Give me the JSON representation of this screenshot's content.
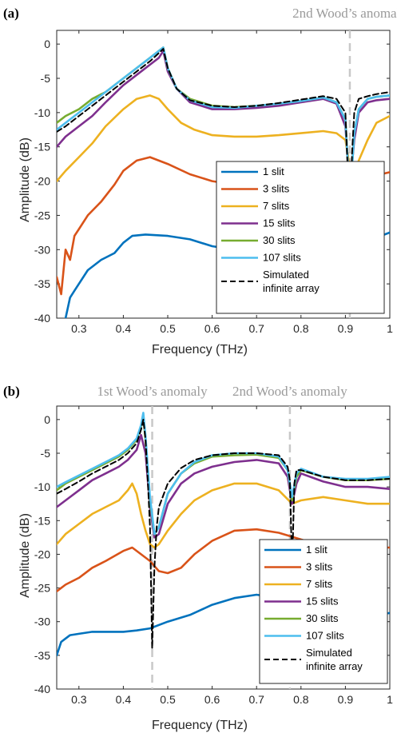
{
  "chart_data": [
    {
      "type": "line",
      "panel_label": "(a)",
      "annotations": [
        {
          "text": "2nd Wood’s anomaly",
          "x": 0.91
        }
      ],
      "xlabel": "Frequency (THz)",
      "ylabel": "Amplitude (dB)",
      "xlim": [
        0.25,
        1.0
      ],
      "ylim": [
        -40,
        2
      ],
      "xticks": [
        0.3,
        0.4,
        0.5,
        0.6,
        0.7,
        0.8,
        0.9,
        1
      ],
      "xtick_labels": [
        "0.3",
        "0.4",
        "0.5",
        "0.6",
        "0.7",
        "0.8",
        "0.9",
        "1"
      ],
      "yticks": [
        0,
        -5,
        -10,
        -15,
        -20,
        -25,
        -30,
        -35,
        -40
      ],
      "ytick_labels": [
        "0",
        "-5",
        "-10",
        "-15",
        "-20",
        "-25",
        "-30",
        "-35",
        "-40"
      ],
      "legend_position": "center-right",
      "series": [
        {
          "name": "1 slit",
          "color": "#0072BD",
          "dash": false,
          "x": [
            0.25,
            0.26,
            0.27,
            0.28,
            0.29,
            0.3,
            0.32,
            0.35,
            0.38,
            0.4,
            0.42,
            0.45,
            0.5,
            0.55,
            0.6,
            0.65,
            0.7,
            0.75,
            0.8,
            0.85,
            0.9,
            0.95,
            0.98,
            1.0
          ],
          "y": [
            -44,
            -42,
            -40,
            -37,
            -36,
            -35,
            -33,
            -31.5,
            -30.5,
            -29,
            -28,
            -27.8,
            -28,
            -28.5,
            -29.5,
            -30,
            -30.5,
            -30.3,
            -30,
            -29.5,
            -29,
            -28.5,
            -28,
            -27.5
          ]
        },
        {
          "name": "3 slits",
          "color": "#D95319",
          "dash": false,
          "x": [
            0.25,
            0.26,
            0.27,
            0.28,
            0.29,
            0.3,
            0.32,
            0.35,
            0.38,
            0.4,
            0.43,
            0.46,
            0.5,
            0.55,
            0.6,
            0.65,
            0.7,
            0.75,
            0.8,
            0.85,
            0.88,
            0.9,
            0.92,
            0.95,
            0.98,
            1.0
          ],
          "y": [
            -34,
            -36.5,
            -30,
            -31.5,
            -28,
            -27,
            -25,
            -23,
            -20.5,
            -18.5,
            -17,
            -16.5,
            -17.5,
            -19,
            -20,
            -20.5,
            -21,
            -21.5,
            -22,
            -22.5,
            -23,
            -23,
            -22.5,
            -20.5,
            -19,
            -18.7
          ]
        },
        {
          "name": "7 slits",
          "color": "#EDB120",
          "dash": false,
          "x": [
            0.25,
            0.27,
            0.3,
            0.33,
            0.36,
            0.4,
            0.43,
            0.46,
            0.48,
            0.5,
            0.53,
            0.56,
            0.6,
            0.65,
            0.7,
            0.75,
            0.8,
            0.85,
            0.88,
            0.9,
            0.91,
            0.92,
            0.93,
            0.95,
            0.97,
            1.0
          ],
          "y": [
            -20,
            -18.5,
            -16.5,
            -14.5,
            -12,
            -9.5,
            -8,
            -7.5,
            -8,
            -9.5,
            -11.5,
            -12.5,
            -13.3,
            -13.5,
            -13.5,
            -13.3,
            -13,
            -12.7,
            -13,
            -14,
            -18,
            -19,
            -17,
            -14,
            -11.5,
            -10.5
          ]
        },
        {
          "name": "15 slits",
          "color": "#7E2F8E",
          "dash": false,
          "x": [
            0.25,
            0.27,
            0.3,
            0.33,
            0.36,
            0.4,
            0.43,
            0.46,
            0.48,
            0.49,
            0.5,
            0.52,
            0.55,
            0.6,
            0.65,
            0.7,
            0.75,
            0.8,
            0.85,
            0.88,
            0.9,
            0.91,
            0.92,
            0.93,
            0.95,
            0.97,
            1.0
          ],
          "y": [
            -15,
            -13.5,
            -12,
            -10.5,
            -8.5,
            -6,
            -4.5,
            -3,
            -2,
            -1,
            -4,
            -6.5,
            -8.5,
            -9.5,
            -9.5,
            -9.3,
            -9,
            -8.5,
            -8,
            -8.7,
            -12,
            -21,
            -14,
            -10,
            -8.5,
            -8.2,
            -8
          ]
        },
        {
          "name": "30 slits",
          "color": "#77AC30",
          "dash": false,
          "x": [
            0.25,
            0.27,
            0.3,
            0.33,
            0.36,
            0.4,
            0.43,
            0.46,
            0.48,
            0.49,
            0.5,
            0.52,
            0.55,
            0.6,
            0.65,
            0.7,
            0.75,
            0.8,
            0.85,
            0.88,
            0.9,
            0.91,
            0.92,
            0.93,
            0.95,
            0.97,
            1.0
          ],
          "y": [
            -11.5,
            -10.5,
            -9.5,
            -8,
            -7,
            -5,
            -3.5,
            -2,
            -1,
            -0.5,
            -3.5,
            -6.5,
            -8,
            -9,
            -9.2,
            -9,
            -8.7,
            -8.3,
            -7.8,
            -8.5,
            -11,
            -22.5,
            -13,
            -9.5,
            -8,
            -7.7,
            -7.5
          ]
        },
        {
          "name": "107 slits",
          "color": "#4DBEEE",
          "dash": false,
          "x": [
            0.25,
            0.27,
            0.3,
            0.33,
            0.36,
            0.4,
            0.43,
            0.46,
            0.48,
            0.49,
            0.5,
            0.52,
            0.55,
            0.6,
            0.65,
            0.7,
            0.75,
            0.8,
            0.85,
            0.88,
            0.9,
            0.91,
            0.92,
            0.93,
            0.95,
            0.97,
            1.0
          ],
          "y": [
            -12.5,
            -11.5,
            -10,
            -8.5,
            -7,
            -5,
            -3.5,
            -2,
            -1,
            -0.5,
            -3.5,
            -6.5,
            -8.2,
            -9.2,
            -9.3,
            -9,
            -8.7,
            -8.3,
            -7.8,
            -8.5,
            -11,
            -23,
            -13,
            -9.5,
            -8,
            -7.7,
            -7.5
          ]
        },
        {
          "name": "Simulated infinite array",
          "legend_lines": [
            "Simulated",
            "infinite array"
          ],
          "color": "#000000",
          "dash": true,
          "x": [
            0.25,
            0.27,
            0.3,
            0.33,
            0.36,
            0.4,
            0.43,
            0.46,
            0.48,
            0.49,
            0.5,
            0.52,
            0.55,
            0.6,
            0.65,
            0.7,
            0.75,
            0.8,
            0.85,
            0.88,
            0.9,
            0.905,
            0.91,
            0.915,
            0.92,
            0.93,
            0.95,
            0.97,
            1.0
          ],
          "y": [
            -12.8,
            -12,
            -10.5,
            -9,
            -7.5,
            -5.5,
            -4,
            -2.5,
            -1.3,
            -0.7,
            -3.5,
            -6.5,
            -8.2,
            -9,
            -9.2,
            -9,
            -8.6,
            -8.1,
            -7.6,
            -8,
            -10,
            -18,
            -31,
            -16,
            -10,
            -8,
            -7.6,
            -7.3,
            -7
          ]
        }
      ]
    },
    {
      "type": "line",
      "panel_label": "(b)",
      "annotations": [
        {
          "text": "1st Wood’s anomaly",
          "x": 0.465
        },
        {
          "text": "2nd Wood’s anomaly",
          "x": 0.775
        }
      ],
      "xlabel": "Frequency (THz)",
      "ylabel": "Amplitude (dB)",
      "xlim": [
        0.25,
        1.0
      ],
      "ylim": [
        -40,
        2
      ],
      "xticks": [
        0.3,
        0.4,
        0.5,
        0.6,
        0.7,
        0.8,
        0.9,
        1
      ],
      "xtick_labels": [
        "0.3",
        "0.4",
        "0.5",
        "0.6",
        "0.7",
        "0.8",
        "0.9",
        "1"
      ],
      "yticks": [
        0,
        -5,
        -10,
        -15,
        -20,
        -25,
        -30,
        -35,
        -40
      ],
      "ytick_labels": [
        "0",
        "-5",
        "-10",
        "-15",
        "-20",
        "-25",
        "-30",
        "-35",
        "-40"
      ],
      "legend_position": "bottom-right",
      "series": [
        {
          "name": "1 slit",
          "color": "#0072BD",
          "dash": false,
          "x": [
            0.25,
            0.26,
            0.27,
            0.28,
            0.3,
            0.33,
            0.36,
            0.4,
            0.43,
            0.46,
            0.5,
            0.55,
            0.6,
            0.65,
            0.7,
            0.75,
            0.8,
            0.85,
            0.9,
            0.95,
            1.0
          ],
          "y": [
            -35,
            -33,
            -32.5,
            -32,
            -31.8,
            -31.5,
            -31.5,
            -31.5,
            -31.3,
            -31,
            -30,
            -29,
            -27.5,
            -26.5,
            -26,
            -26.5,
            -27.5,
            -28.5,
            -29.3,
            -29.3,
            -28.7
          ]
        },
        {
          "name": "3 slits",
          "color": "#D95319",
          "dash": false,
          "x": [
            0.25,
            0.27,
            0.3,
            0.33,
            0.36,
            0.4,
            0.42,
            0.44,
            0.46,
            0.48,
            0.5,
            0.53,
            0.56,
            0.6,
            0.65,
            0.7,
            0.75,
            0.8,
            0.85,
            0.9,
            0.95,
            1.0
          ],
          "y": [
            -25.5,
            -24.5,
            -23.5,
            -22,
            -21,
            -19.5,
            -19,
            -20,
            -21,
            -22.5,
            -22.8,
            -22,
            -20,
            -18,
            -16.5,
            -16.3,
            -16.8,
            -17.8,
            -18.7,
            -19,
            -19,
            -19
          ]
        },
        {
          "name": "7 slits",
          "color": "#EDB120",
          "dash": false,
          "x": [
            0.25,
            0.27,
            0.3,
            0.33,
            0.36,
            0.39,
            0.41,
            0.42,
            0.43,
            0.44,
            0.45,
            0.46,
            0.47,
            0.48,
            0.5,
            0.53,
            0.56,
            0.6,
            0.65,
            0.7,
            0.75,
            0.78,
            0.8,
            0.85,
            0.9,
            0.95,
            1.0
          ],
          "y": [
            -18.5,
            -17,
            -15.5,
            -14,
            -13,
            -12,
            -10.5,
            -9.5,
            -11,
            -14,
            -16.5,
            -18.5,
            -19,
            -18.5,
            -16.5,
            -14,
            -12,
            -10.5,
            -9.5,
            -9.5,
            -10.5,
            -12.5,
            -12,
            -11.5,
            -12,
            -12.5,
            -12.5
          ]
        },
        {
          "name": "15 slits",
          "color": "#7E2F8E",
          "dash": false,
          "x": [
            0.25,
            0.27,
            0.3,
            0.33,
            0.36,
            0.39,
            0.41,
            0.43,
            0.44,
            0.45,
            0.46,
            0.47,
            0.48,
            0.5,
            0.53,
            0.56,
            0.6,
            0.65,
            0.7,
            0.75,
            0.77,
            0.78,
            0.79,
            0.8,
            0.85,
            0.9,
            0.95,
            1.0
          ],
          "y": [
            -13,
            -12,
            -10.5,
            -9,
            -8,
            -7,
            -6,
            -4.5,
            -2.3,
            -5,
            -13,
            -17.5,
            -17,
            -12.5,
            -9.5,
            -8,
            -7,
            -6.3,
            -6,
            -6.5,
            -8.5,
            -12.5,
            -9.5,
            -8,
            -9.2,
            -10,
            -10,
            -10.3
          ]
        },
        {
          "name": "30 slits",
          "color": "#77AC30",
          "dash": false,
          "x": [
            0.25,
            0.27,
            0.3,
            0.33,
            0.36,
            0.39,
            0.41,
            0.43,
            0.44,
            0.445,
            0.45,
            0.46,
            0.47,
            0.48,
            0.5,
            0.53,
            0.56,
            0.6,
            0.65,
            0.7,
            0.75,
            0.77,
            0.78,
            0.79,
            0.8,
            0.85,
            0.9,
            0.95,
            1.0
          ],
          "y": [
            -10.5,
            -9.5,
            -8.5,
            -7.5,
            -6.5,
            -5.5,
            -4.5,
            -3,
            -1,
            0.5,
            -3,
            -12,
            -17,
            -16,
            -11,
            -8,
            -6.5,
            -5.5,
            -5.3,
            -5.2,
            -5.7,
            -7.5,
            -12,
            -8.5,
            -7.5,
            -8.5,
            -9,
            -9,
            -8.8
          ]
        },
        {
          "name": "107 slits",
          "color": "#4DBEEE",
          "dash": false,
          "x": [
            0.25,
            0.27,
            0.3,
            0.33,
            0.36,
            0.39,
            0.41,
            0.43,
            0.44,
            0.445,
            0.45,
            0.46,
            0.47,
            0.48,
            0.5,
            0.53,
            0.56,
            0.6,
            0.65,
            0.7,
            0.75,
            0.77,
            0.78,
            0.79,
            0.8,
            0.85,
            0.9,
            0.95,
            1.0
          ],
          "y": [
            -10,
            -9.3,
            -8.3,
            -7.3,
            -6.3,
            -5.3,
            -4.3,
            -2.8,
            -0.8,
            1,
            -2.5,
            -11.5,
            -17,
            -16,
            -11,
            -8,
            -6.3,
            -5.3,
            -5,
            -5,
            -5.5,
            -7.5,
            -11.5,
            -8,
            -7.3,
            -8.5,
            -8.8,
            -8.8,
            -8.5
          ]
        },
        {
          "name": "Simulated infinite array",
          "legend_lines": [
            "Simulated",
            "infinite array"
          ],
          "color": "#000000",
          "dash": true,
          "x": [
            0.25,
            0.27,
            0.3,
            0.33,
            0.36,
            0.39,
            0.41,
            0.43,
            0.44,
            0.445,
            0.45,
            0.455,
            0.46,
            0.465,
            0.47,
            0.475,
            0.48,
            0.5,
            0.53,
            0.56,
            0.6,
            0.65,
            0.7,
            0.75,
            0.77,
            0.775,
            0.78,
            0.785,
            0.79,
            0.8,
            0.85,
            0.9,
            0.95,
            1.0
          ],
          "y": [
            -11,
            -10.3,
            -9.2,
            -8,
            -7,
            -6,
            -5,
            -3.5,
            -1.5,
            0,
            -3,
            -9,
            -16,
            -34,
            -22,
            -16,
            -13,
            -9.5,
            -7.2,
            -6,
            -5.3,
            -5,
            -5,
            -5.3,
            -7,
            -9,
            -22,
            -9.5,
            -7.5,
            -7.5,
            -8.5,
            -9,
            -9,
            -8.8
          ]
        }
      ]
    }
  ]
}
